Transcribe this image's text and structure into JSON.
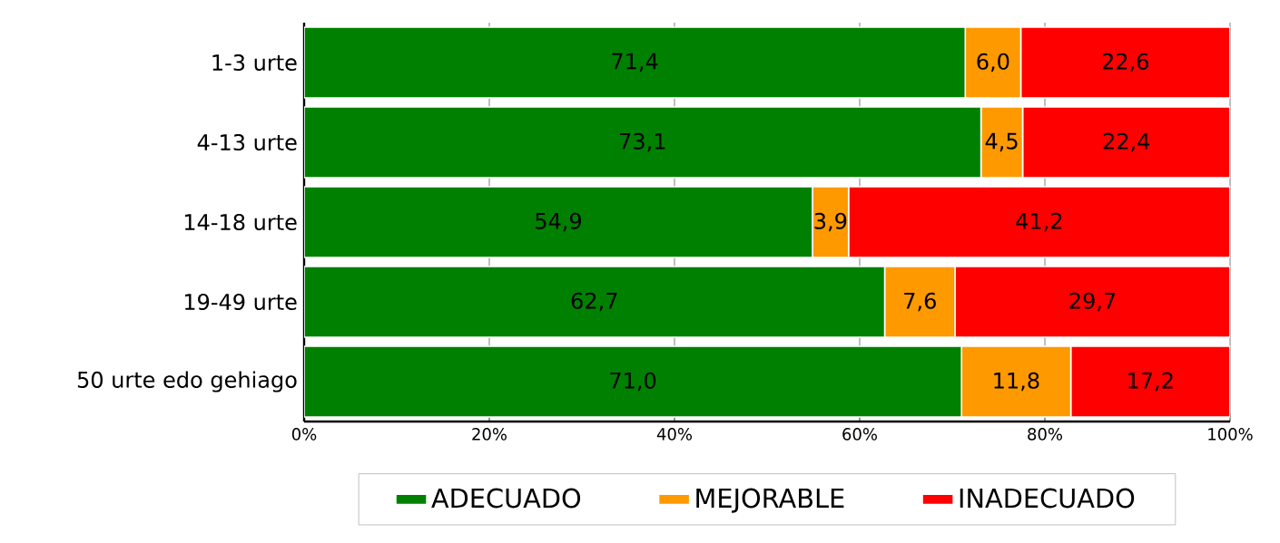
{
  "chart_data": {
    "type": "bar",
    "orientation": "horizontal",
    "stacked": true,
    "categories": [
      "1-3 urte",
      "4-13 urte",
      "14-18 urte",
      "19-49 urte",
      "50 urte edo gehiago"
    ],
    "series": [
      {
        "name": "ADECUADO",
        "color": "#008000",
        "values": [
          71.4,
          73.1,
          54.9,
          62.7,
          71.0
        ],
        "value_labels": [
          "71,4",
          "73,1",
          "54,9",
          "62,7",
          "71,0"
        ]
      },
      {
        "name": "MEJORABLE",
        "color": "#ff9900",
        "values": [
          6.0,
          4.5,
          3.9,
          7.6,
          11.8
        ],
        "value_labels": [
          "6,0",
          "4,5",
          "3,9",
          "7,6",
          "11,8"
        ]
      },
      {
        "name": "INADECUADO",
        "color": "#ff0000",
        "values": [
          22.6,
          22.4,
          41.2,
          29.7,
          17.2
        ],
        "value_labels": [
          "22,6",
          "22,4",
          "41,2",
          "29,7",
          "17,2"
        ]
      }
    ],
    "xlim": [
      0,
      100
    ],
    "xticks": [
      {
        "value": 0,
        "label": "0%"
      },
      {
        "value": 20,
        "label": "20%"
      },
      {
        "value": 40,
        "label": "40%"
      },
      {
        "value": 60,
        "label": "60%"
      },
      {
        "value": 80,
        "label": "80%"
      },
      {
        "value": 100,
        "label": "100%"
      }
    ],
    "grid": "x",
    "legend": "bottom"
  }
}
